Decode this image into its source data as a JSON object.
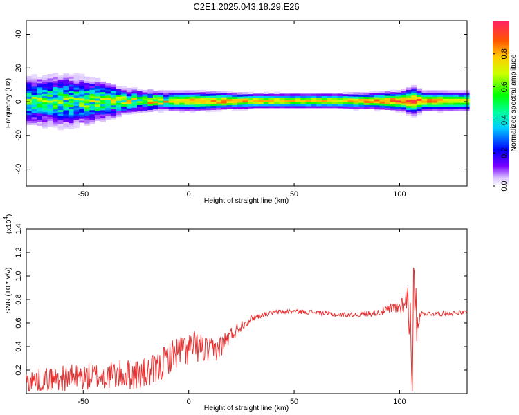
{
  "title": "C2E1.2025.043.18.29.E26",
  "chart_data": [
    {
      "type": "heatmap",
      "xlabel": "Height of straight line (km)",
      "ylabel": "Frequency (Hz)",
      "xlim": [
        -77,
        132
      ],
      "ylim": [
        -50,
        48
      ],
      "xticks": [
        -50,
        0,
        50,
        100
      ],
      "yticks": [
        -40,
        -20,
        0,
        20,
        40
      ],
      "colorbar": {
        "label": "Normalized spectral amplitude",
        "range": [
          0,
          1
        ],
        "ticks": [
          "0.0",
          "0.2",
          "0.4",
          "0.6",
          "0.8"
        ]
      },
      "ridge": {
        "description": "energy concentrated near 0 Hz across the full height range",
        "center_freq_hz": 0,
        "x": [
          -75,
          -60,
          -45,
          -30,
          -15,
          0,
          15,
          30,
          50,
          70,
          90,
          100,
          105,
          110,
          130
        ],
        "half_width_hz": [
          10,
          11,
          9,
          5,
          4,
          4,
          3.5,
          3,
          3,
          3,
          3.5,
          4,
          6,
          4,
          4
        ],
        "peak_amplitude": [
          0.5,
          0.5,
          0.55,
          0.6,
          0.7,
          0.8,
          0.85,
          0.8,
          0.75,
          0.75,
          0.85,
          0.9,
          0.9,
          0.85,
          0.7
        ]
      }
    },
    {
      "type": "line",
      "xlabel": "Height of straight line (km)",
      "ylabel": "SNR (10 * v/v)",
      "y_multiplier": "(x10",
      "y_multiplier_exp": "4",
      "y_multiplier_close": ")",
      "xlim": [
        -77,
        132
      ],
      "ylim": [
        0,
        1.4
      ],
      "xticks": [
        -50,
        0,
        50,
        100
      ],
      "yticks": [
        "0.2",
        "0.4",
        "0.6",
        "0.8",
        "1.0",
        "1.2",
        "1.4"
      ],
      "series": [
        {
          "color": "#e83030",
          "x": [
            -77,
            -70,
            -60,
            -50,
            -40,
            -30,
            -20,
            -15,
            -10,
            -5,
            0,
            5,
            10,
            15,
            20,
            25,
            30,
            35,
            40,
            50,
            60,
            70,
            80,
            90,
            95,
            100,
            103,
            105,
            106,
            107,
            108,
            110,
            120,
            132
          ],
          "y": [
            0.1,
            0.12,
            0.13,
            0.14,
            0.15,
            0.16,
            0.17,
            0.2,
            0.3,
            0.36,
            0.38,
            0.4,
            0.35,
            0.4,
            0.5,
            0.58,
            0.64,
            0.67,
            0.69,
            0.7,
            0.69,
            0.67,
            0.67,
            0.69,
            0.71,
            0.74,
            0.8,
            0.7,
            0.4,
            0.8,
            0.62,
            0.68,
            0.68,
            0.69
          ],
          "noise_amplitude": [
            0.1,
            0.1,
            0.11,
            0.12,
            0.12,
            0.13,
            0.14,
            0.14,
            0.14,
            0.14,
            0.15,
            0.13,
            0.12,
            0.1,
            0.07,
            0.05,
            0.03,
            0.02,
            0.02,
            0.02,
            0.02,
            0.02,
            0.02,
            0.03,
            0.05,
            0.07,
            0.1,
            0.4,
            0.6,
            0.45,
            0.2,
            0.02,
            0.02,
            0.02
          ]
        }
      ]
    }
  ]
}
